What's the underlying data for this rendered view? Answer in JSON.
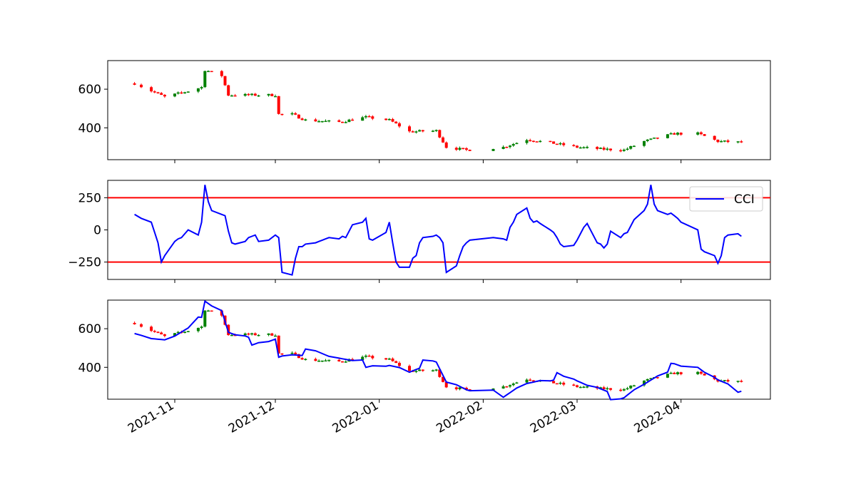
{
  "chart_data": [
    {
      "type": "candlestick",
      "x_label": "",
      "y_label": "",
      "y_ticks": [
        400,
        600
      ],
      "ylim": [
        235,
        748
      ],
      "up_color": "#008000",
      "down_color": "#ff0000"
    },
    {
      "type": "line",
      "y_ticks": [
        -250,
        0,
        250
      ],
      "ylim": [
        -385,
        385
      ],
      "threshold_lines": [
        250,
        -250
      ],
      "threshold_color": "#ff0000",
      "series": [
        {
          "name": "CCI",
          "color": "#0000ff",
          "x": [
            "2021-10-20",
            "2021-10-22",
            "2021-10-25",
            "2021-10-26",
            "2021-10-27",
            "2021-10-28",
            "2021-10-29",
            "2021-11-01",
            "2021-11-02",
            "2021-11-03",
            "2021-11-04",
            "2021-11-05",
            "2021-11-08",
            "2021-11-09",
            "2021-11-10",
            "2021-11-11",
            "2021-11-12",
            "2021-11-15",
            "2021-11-16",
            "2021-11-17",
            "2021-11-18",
            "2021-11-19",
            "2021-11-22",
            "2021-11-23",
            "2021-11-24",
            "2021-11-25",
            "2021-11-26",
            "2021-11-29",
            "2021-11-30",
            "2021-12-01",
            "2021-12-02",
            "2021-12-03",
            "2021-12-06",
            "2021-12-07",
            "2021-12-08",
            "2021-12-09",
            "2021-12-10",
            "2021-12-13",
            "2021-12-14",
            "2021-12-15",
            "2021-12-16",
            "2021-12-17",
            "2021-12-20",
            "2021-12-21",
            "2021-12-22",
            "2021-12-23",
            "2021-12-24",
            "2021-12-27",
            "2021-12-28",
            "2021-12-29",
            "2021-12-30",
            "2022-01-03",
            "2022-01-04",
            "2022-01-05",
            "2022-01-06",
            "2022-01-07",
            "2022-01-10",
            "2022-01-11",
            "2022-01-12",
            "2022-01-13",
            "2022-01-14",
            "2022-01-17",
            "2022-01-18",
            "2022-01-19",
            "2022-01-20",
            "2022-01-21",
            "2022-01-24",
            "2022-01-25",
            "2022-01-26",
            "2022-01-27",
            "2022-01-28",
            "2022-02-04",
            "2022-02-07",
            "2022-02-08",
            "2022-02-09",
            "2022-02-10",
            "2022-02-11",
            "2022-02-14",
            "2022-02-15",
            "2022-02-16",
            "2022-02-17",
            "2022-02-18",
            "2022-02-21",
            "2022-02-22",
            "2022-02-23",
            "2022-02-24",
            "2022-02-25",
            "2022-02-28",
            "2022-03-01",
            "2022-03-02",
            "2022-03-03",
            "2022-03-04",
            "2022-03-07",
            "2022-03-08",
            "2022-03-09",
            "2022-03-10",
            "2022-03-11",
            "2022-03-14",
            "2022-03-15",
            "2022-03-16",
            "2022-03-17",
            "2022-03-18",
            "2022-03-21",
            "2022-03-22",
            "2022-03-23",
            "2022-03-24",
            "2022-03-25",
            "2022-03-28",
            "2022-03-29",
            "2022-03-30",
            "2022-03-31",
            "2022-04-01",
            "2022-04-06",
            "2022-04-07",
            "2022-04-08",
            "2022-04-11",
            "2022-04-12",
            "2022-04-13",
            "2022-04-14",
            "2022-04-15",
            "2022-04-18",
            "2022-04-19"
          ],
          "values": [
            120,
            90,
            60,
            -20,
            -100,
            -250,
            -200,
            -90,
            -70,
            -60,
            -30,
            0,
            -40,
            60,
            350,
            220,
            150,
            120,
            110,
            -10,
            -100,
            -110,
            -90,
            -60,
            -50,
            -40,
            -90,
            -80,
            -60,
            -40,
            -60,
            -330,
            -350,
            -220,
            -130,
            -130,
            -110,
            -100,
            -90,
            -80,
            -70,
            -60,
            -70,
            -50,
            -60,
            -10,
            40,
            60,
            90,
            -70,
            -80,
            -20,
            60,
            -100,
            -250,
            -290,
            -290,
            -220,
            -200,
            -100,
            -60,
            -50,
            -40,
            -60,
            -100,
            -330,
            -280,
            -200,
            -130,
            -100,
            -80,
            -60,
            -70,
            -80,
            20,
            60,
            120,
            170,
            90,
            60,
            70,
            50,
            0,
            -20,
            -60,
            -110,
            -130,
            -120,
            -80,
            -30,
            20,
            50,
            -100,
            -110,
            -140,
            -110,
            -10,
            -60,
            -30,
            -20,
            30,
            80,
            150,
            200,
            350,
            200,
            150,
            120,
            130,
            110,
            90,
            60,
            0,
            -150,
            -170,
            -200,
            -260,
            -200,
            -60,
            -40,
            -30,
            -50
          ]
        }
      ],
      "legend": {
        "placement": "top-right",
        "entries": [
          "CCI"
        ]
      }
    },
    {
      "type": "candlestick_with_overlay",
      "y_ticks": [
        400,
        600
      ],
      "ylim": [
        235,
        748
      ],
      "overlay_color": "#0000ff",
      "x_tick_labels": [
        "2021-11",
        "2021-12",
        "2022-01",
        "2022-02",
        "2022-03",
        "2022-04"
      ]
    }
  ]
}
